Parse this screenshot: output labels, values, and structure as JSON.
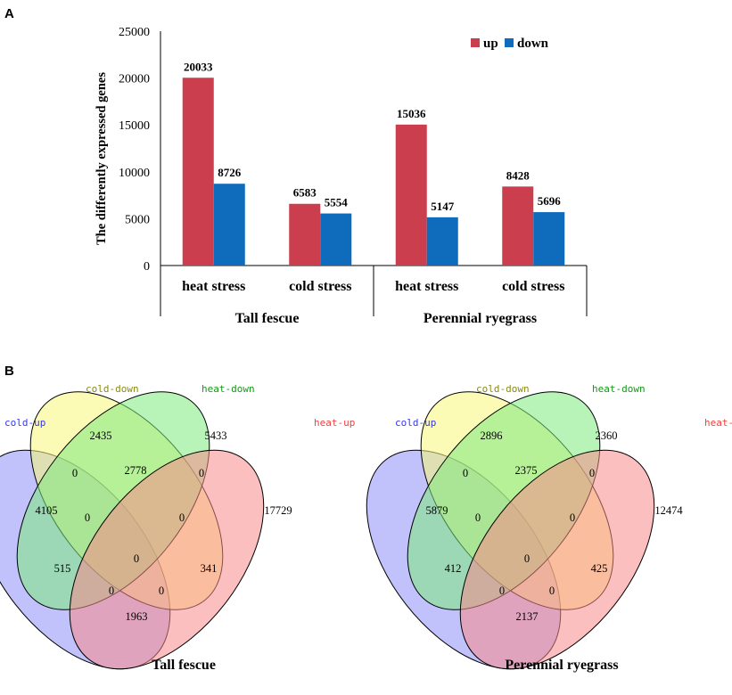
{
  "panels": {
    "a": "A",
    "b": "B"
  },
  "colors": {
    "up": "#cb3e4e",
    "down": "#0f6cbd"
  },
  "chart_data": {
    "type": "bar",
    "ylabel": "The differently  expressed genes",
    "ylim": [
      0,
      25000
    ],
    "yticks": [
      0,
      5000,
      10000,
      15000,
      20000,
      25000
    ],
    "grid": false,
    "legend": {
      "position": "top-right",
      "entries": [
        "up",
        "down"
      ]
    },
    "groups": [
      "Tall fescue",
      "Perennial ryegrass"
    ],
    "categories": [
      "heat stress",
      "cold stress",
      "heat stress",
      "cold stress"
    ],
    "category_group": [
      0,
      0,
      1,
      1
    ],
    "series": [
      {
        "name": "up",
        "values": [
          20033,
          6583,
          15036,
          8428
        ]
      },
      {
        "name": "down",
        "values": [
          8726,
          5554,
          5147,
          5696
        ]
      }
    ]
  },
  "venn": [
    {
      "title": "Tall fescue",
      "sets": [
        {
          "name": "cold-up",
          "color": "#3333ff",
          "fill": "#8e8ef8"
        },
        {
          "name": "cold-down",
          "color": "#8a8a14",
          "fill": "#f7f77a"
        },
        {
          "name": "heat-down",
          "color": "#189618",
          "fill": "#7eea7e"
        },
        {
          "name": "heat-up",
          "color": "#f24040",
          "fill": "#fa8a8a"
        }
      ],
      "regions": {
        "cu": "4105",
        "cd": "2435",
        "hd": "5433",
        "hu": "17729",
        "cu_cd": "0",
        "cd_hd": "2778",
        "hd_hu": "0",
        "cu_hd": "0",
        "cd_hu": "0",
        "cu_hu": "1963",
        "cu_cd_hd": "515",
        "cd_hd_hu": "341",
        "all": "0",
        "cu_cd_hu": "0",
        "cu_hd_hu": "0"
      }
    },
    {
      "title": "Perennial ryegrass",
      "sets": [
        {
          "name": "cold-up",
          "color": "#3333ff",
          "fill": "#8e8ef8"
        },
        {
          "name": "cold-down",
          "color": "#8a8a14",
          "fill": "#f7f77a"
        },
        {
          "name": "heat-down",
          "color": "#189618",
          "fill": "#7eea7e"
        },
        {
          "name": "heat-up",
          "color": "#f24040",
          "fill": "#fa8a8a"
        }
      ],
      "regions": {
        "cu": "5879",
        "cd": "2896",
        "hd": "2360",
        "hu": "12474",
        "cu_cd": "0",
        "cd_hd": "2375",
        "hd_hu": "0",
        "cu_hd": "0",
        "cd_hu": "0",
        "cu_hu": "2137",
        "cu_cd_hd": "412",
        "cd_hd_hu": "425",
        "all": "0",
        "cu_cd_hu": "0",
        "cu_hd_hu": "0"
      }
    }
  ]
}
